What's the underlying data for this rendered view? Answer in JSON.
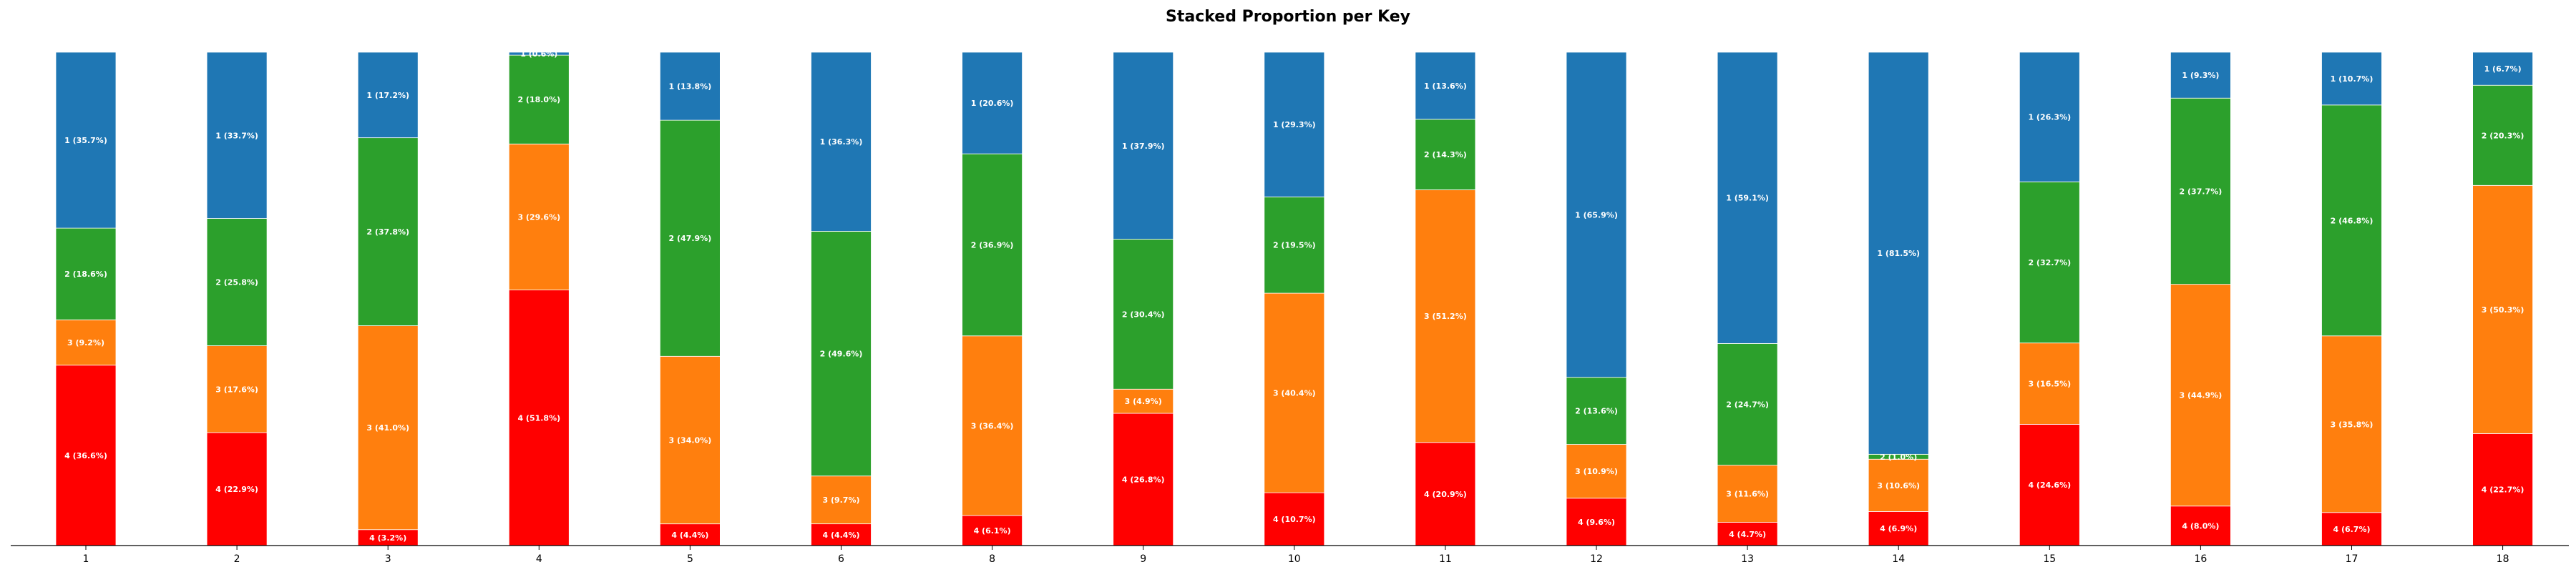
{
  "chart_data": {
    "type": "bar",
    "stacked": true,
    "title": "Stacked Proportion per Key",
    "xlabel": "",
    "ylabel": "",
    "ylim": [
      0,
      100
    ],
    "categories": [
      "1",
      "2",
      "3",
      "4",
      "5",
      "6",
      "8",
      "9",
      "10",
      "11",
      "12",
      "13",
      "14",
      "15",
      "16",
      "17",
      "18"
    ],
    "series": [
      {
        "name": "4",
        "color": "#ff0000",
        "values": [
          36.6,
          22.9,
          3.2,
          51.8,
          4.4,
          4.4,
          6.1,
          26.8,
          10.7,
          20.9,
          9.6,
          4.7,
          6.9,
          24.6,
          8.0,
          6.7,
          22.7
        ]
      },
      {
        "name": "3",
        "color": "#ff7f0e",
        "values": [
          9.2,
          17.6,
          41.0,
          29.6,
          34.0,
          9.7,
          36.4,
          4.9,
          40.4,
          51.2,
          10.9,
          11.6,
          10.6,
          16.5,
          44.9,
          35.8,
          50.3
        ]
      },
      {
        "name": "2",
        "color": "#2ca02c",
        "values": [
          18.6,
          25.8,
          37.8,
          18.0,
          47.9,
          49.6,
          36.9,
          30.4,
          19.5,
          14.3,
          13.6,
          24.7,
          1.0,
          32.7,
          37.7,
          46.8,
          20.3
        ]
      },
      {
        "name": "1",
        "color": "#1f77b4",
        "values": [
          35.7,
          33.7,
          17.2,
          0.6,
          13.8,
          36.3,
          20.6,
          37.9,
          29.3,
          13.6,
          65.9,
          59.1,
          81.5,
          26.3,
          9.3,
          10.7,
          6.7
        ]
      }
    ],
    "segment_labels": [
      [
        "4 (36.6%)",
        "4 (22.9%)",
        "4 (3.2%)",
        "4 (51.8%)",
        "4 (4.4%)",
        "4 (4.4%)",
        "4 (6.1%)",
        "4 (26.8%)",
        "4 (10.7%)",
        "4 (20.9%)",
        "4 (9.6%)",
        "4 (4.7%)",
        "4 (6.9%)",
        "4 (24.6%)",
        "4 (8.0%)",
        "4 (6.7%)",
        "4 (22.7%)"
      ],
      [
        "3 (9.2%)",
        "3 (17.6%)",
        "3 (41.0%)",
        "3 (29.6%)",
        "3 (34.0%)",
        "3 (9.7%)",
        "3 (36.4%)",
        "3 (4.9%)",
        "3 (40.4%)",
        "3 (51.2%)",
        "3 (10.9%)",
        "3 (11.6%)",
        "3 (10.6%)",
        "3 (16.5%)",
        "3 (44.9%)",
        "3 (35.8%)",
        "3 (50.3%)"
      ],
      [
        "2 (18.6%)",
        "2 (25.8%)",
        "2 (37.8%)",
        "2 (18.0%)",
        "2 (47.9%)",
        "2 (49.6%)",
        "2 (36.9%)",
        "2 (30.4%)",
        "2 (19.5%)",
        "2 (14.3%)",
        "2 (13.6%)",
        "2 (24.7%)",
        "2 (1.0%)",
        "2 (32.7%)",
        "2 (37.7%)",
        "2 (46.8%)",
        "2 (20.3%)"
      ],
      [
        "1 (35.7%)",
        "1 (33.7%)",
        "1 (17.2%)",
        "1 (0.6%)",
        "1 (13.8%)",
        "1 (36.3%)",
        "1 (20.6%)",
        "1 (37.9%)",
        "1 (29.3%)",
        "1 (13.6%)",
        "1 (65.9%)",
        "1 (59.1%)",
        "1 (81.5%)",
        "1 (26.3%)",
        "1 (9.3%)",
        "1 (10.7%)",
        "1 (6.7%)"
      ]
    ],
    "legend": "none",
    "grid": false
  }
}
